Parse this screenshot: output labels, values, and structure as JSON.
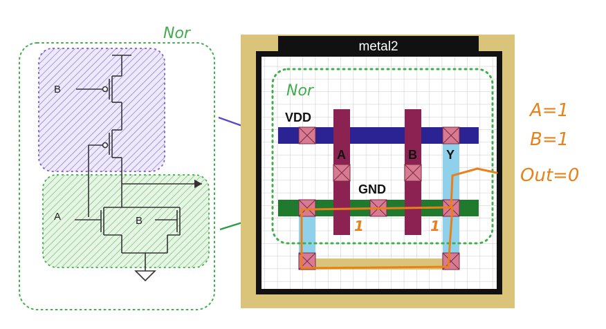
{
  "schematic": {
    "group_label": "Nor",
    "input_b_top": "B",
    "input_a": "A",
    "input_b_bottom": "B"
  },
  "layout": {
    "metal_label": "metal2",
    "group_label": "Nor",
    "vdd_label": "VDD",
    "gnd_label": "GND",
    "col_a_label": "A",
    "col_b_label": "B",
    "col_y_label": "Y",
    "mark_a": "1",
    "mark_b": "1"
  },
  "annotations": {
    "line_a": "A=1",
    "line_b": "B=1",
    "line_out": "Out=0"
  },
  "colors": {
    "pmos_region": "#7b5cd6",
    "nmos_region": "#3fae4a",
    "group_outline": "#3fae4a",
    "gold_frame": "#d9c47a",
    "vdd_rail": "#2b2394",
    "gnd_rail": "#1f7a2e",
    "poly_column": "#8b2252",
    "y_column": "#8fd0ea",
    "contact": "#d87a92",
    "handwriting": "#e8811a",
    "arrow_purple": "#5b48c8",
    "arrow_green": "#2e9a44"
  }
}
